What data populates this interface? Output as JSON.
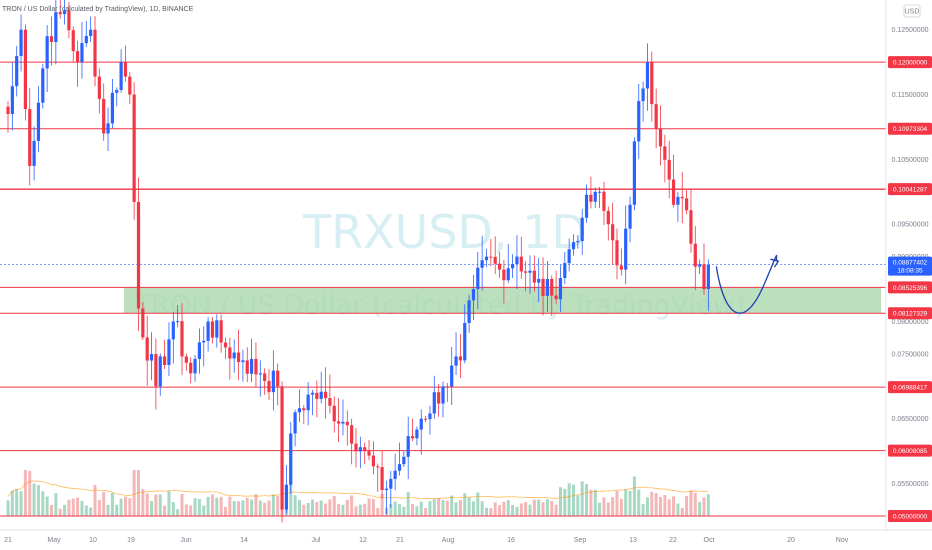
{
  "header": {
    "title": "TRON / US Dollar (calculated by TradingView), 1D, BINANCE",
    "currency": "USD"
  },
  "watermark": {
    "symbol": "TRXUSD, 1D",
    "name": "TRON / US Dollar (calculated by TradingView)"
  },
  "price_axis": {
    "ticks": [
      "0.12500000",
      "0.11500000",
      "0.10500000",
      "0.09500000",
      "0.09000000",
      "0.08000000",
      "0.07500000",
      "0.06500000",
      "0.05500000"
    ],
    "levels": [
      {
        "label": "0.12000000",
        "value": 0.12
      },
      {
        "label": "0.10973304",
        "value": 0.10973304
      },
      {
        "label": "0.10041287",
        "value": 0.10041287
      },
      {
        "label": "0.08525396",
        "value": 0.08525396
      },
      {
        "label": "0.08127329",
        "value": 0.08127329
      },
      {
        "label": "0.06988417",
        "value": 0.06988417
      },
      {
        "label": "0.06008085",
        "value": 0.06008085
      },
      {
        "label": "0.05000000",
        "value": 0.05
      }
    ],
    "current": {
      "label": "0.08877402",
      "countdown": "18:08:35",
      "value": 0.08877402
    }
  },
  "time_axis": [
    "21",
    "May",
    "10",
    "19",
    "Jun",
    "14",
    "Jul",
    "12",
    "21",
    "Aug",
    "16",
    "Sep",
    "13",
    "22",
    "Oct",
    "20",
    "Nov"
  ],
  "chart_data": {
    "type": "candlestick",
    "symbol": "TRXUSD",
    "interval": "1D",
    "exchange": "BINANCE",
    "ylim": [
      0.0495,
      0.129
    ],
    "support_zone": [
      0.08127329,
      0.08525396
    ],
    "horizontal_levels": [
      0.12,
      0.10973304,
      0.10041287,
      0.08525396,
      0.08127329,
      0.06988417,
      0.06008085,
      0.05
    ],
    "last_price": 0.08877402,
    "colors": {
      "up": "#2962ff",
      "down": "#f23645",
      "level": "#f23645",
      "zone": "#a5d6a7",
      "ma": "#ff9800",
      "arrow": "#1e3fae"
    },
    "waypoints": [
      {
        "d": 0,
        "p": 0.112
      },
      {
        "d": 3,
        "p": 0.125
      },
      {
        "d": 5,
        "p": 0.104
      },
      {
        "d": 9,
        "p": 0.124
      },
      {
        "d": 13,
        "p": 0.128
      },
      {
        "d": 16,
        "p": 0.12
      },
      {
        "d": 19,
        "p": 0.125
      },
      {
        "d": 22,
        "p": 0.109
      },
      {
        "d": 26,
        "p": 0.12
      },
      {
        "d": 28,
        "p": 0.115
      },
      {
        "d": 30,
        "p": 0.082
      },
      {
        "d": 34,
        "p": 0.07
      },
      {
        "d": 38,
        "p": 0.08
      },
      {
        "d": 42,
        "p": 0.072
      },
      {
        "d": 46,
        "p": 0.08
      },
      {
        "d": 50,
        "p": 0.076
      },
      {
        "d": 54,
        "p": 0.074
      },
      {
        "d": 58,
        "p": 0.072
      },
      {
        "d": 62,
        "p": 0.07
      },
      {
        "d": 63,
        "p": 0.051
      },
      {
        "d": 66,
        "p": 0.066
      },
      {
        "d": 70,
        "p": 0.069
      },
      {
        "d": 74,
        "p": 0.067
      },
      {
        "d": 78,
        "p": 0.064
      },
      {
        "d": 82,
        "p": 0.06
      },
      {
        "d": 86,
        "p": 0.054
      },
      {
        "d": 90,
        "p": 0.058
      },
      {
        "d": 95,
        "p": 0.065
      },
      {
        "d": 100,
        "p": 0.07
      },
      {
        "d": 104,
        "p": 0.074
      },
      {
        "d": 107,
        "p": 0.085
      },
      {
        "d": 110,
        "p": 0.09
      },
      {
        "d": 113,
        "p": 0.088
      },
      {
        "d": 117,
        "p": 0.09
      },
      {
        "d": 121,
        "p": 0.086
      },
      {
        "d": 125,
        "p": 0.084
      },
      {
        "d": 128,
        "p": 0.089
      },
      {
        "d": 132,
        "p": 0.096
      },
      {
        "d": 135,
        "p": 0.1
      },
      {
        "d": 138,
        "p": 0.095
      },
      {
        "d": 141,
        "p": 0.088
      },
      {
        "d": 143,
        "p": 0.098
      },
      {
        "d": 145,
        "p": 0.114
      },
      {
        "d": 147,
        "p": 0.12
      },
      {
        "d": 150,
        "p": 0.107
      },
      {
        "d": 153,
        "p": 0.098
      },
      {
        "d": 155,
        "p": 0.099
      },
      {
        "d": 157,
        "p": 0.092
      },
      {
        "d": 160,
        "p": 0.085
      },
      {
        "d": 161,
        "p": 0.0888
      }
    ],
    "projection": "curved arrow dipping into support zone then rising"
  }
}
